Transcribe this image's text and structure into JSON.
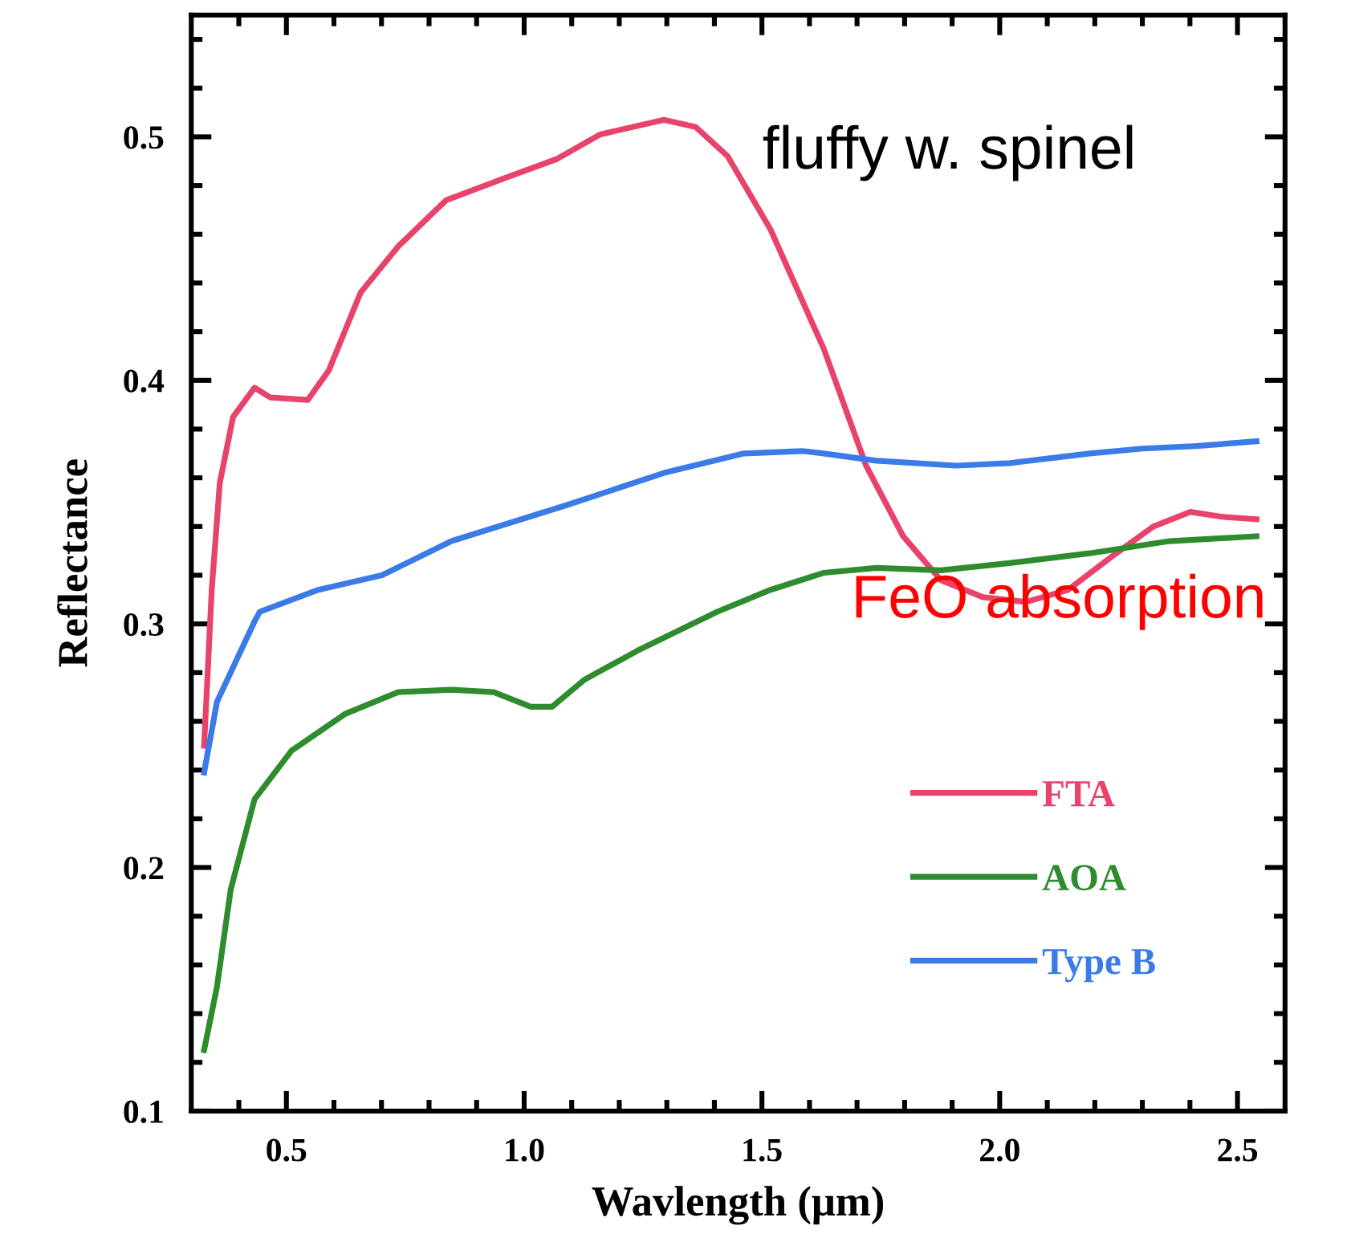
{
  "chart_data": {
    "type": "line",
    "xlabel": "Wavlength (μm)",
    "ylabel": "Reflectance",
    "annotations": [
      "fluffy w. spinel",
      "FeO absorption"
    ],
    "xlim": [
      0.3,
      2.6
    ],
    "ylim": [
      0.1,
      0.55
    ],
    "xticks": [
      {
        "value": 0.4,
        "label": null
      },
      {
        "value": 0.5,
        "label": "0.5"
      },
      {
        "value": 0.6,
        "label": null
      },
      {
        "value": 0.7,
        "label": null
      },
      {
        "value": 0.8,
        "label": null
      },
      {
        "value": 0.9,
        "label": null
      },
      {
        "value": 1.0,
        "label": "1.0"
      },
      {
        "value": 1.1,
        "label": null
      },
      {
        "value": 1.2,
        "label": null
      },
      {
        "value": 1.3,
        "label": null
      },
      {
        "value": 1.4,
        "label": null
      },
      {
        "value": 1.5,
        "label": "1.5"
      },
      {
        "value": 1.6,
        "label": null
      },
      {
        "value": 1.7,
        "label": null
      },
      {
        "value": 1.8,
        "label": null
      },
      {
        "value": 1.9,
        "label": null
      },
      {
        "value": 2.0,
        "label": "2.0"
      },
      {
        "value": 2.1,
        "label": null
      },
      {
        "value": 2.2,
        "label": null
      },
      {
        "value": 2.3,
        "label": null
      },
      {
        "value": 2.4,
        "label": null
      },
      {
        "value": 2.5,
        "label": "2.5"
      }
    ],
    "yticks": [
      {
        "value": 0.1,
        "label": "0.1"
      },
      {
        "value": 0.12,
        "label": null
      },
      {
        "value": 0.14,
        "label": null
      },
      {
        "value": 0.16,
        "label": null
      },
      {
        "value": 0.18,
        "label": null
      },
      {
        "value": 0.2,
        "label": "0.2"
      },
      {
        "value": 0.22,
        "label": null
      },
      {
        "value": 0.24,
        "label": null
      },
      {
        "value": 0.26,
        "label": null
      },
      {
        "value": 0.28,
        "label": null
      },
      {
        "value": 0.3,
        "label": "0.3"
      },
      {
        "value": 0.32,
        "label": null
      },
      {
        "value": 0.34,
        "label": null
      },
      {
        "value": 0.36,
        "label": null
      },
      {
        "value": 0.38,
        "label": null
      },
      {
        "value": 0.4,
        "label": "0.4"
      },
      {
        "value": 0.42,
        "label": null
      },
      {
        "value": 0.44,
        "label": null
      },
      {
        "value": 0.46,
        "label": null
      },
      {
        "value": 0.48,
        "label": null
      },
      {
        "value": 0.5,
        "label": "0.5"
      },
      {
        "value": 0.52,
        "label": null
      },
      {
        "value": 0.54,
        "label": null
      }
    ],
    "grid": false,
    "legend": "bottom right",
    "marker": "none",
    "line_style": "solid",
    "series": [
      {
        "name": "FTA",
        "color": "#e8436a",
        "x": [
          0.327,
          0.343,
          0.36,
          0.388,
          0.433,
          0.466,
          0.545,
          0.589,
          0.656,
          0.735,
          0.836,
          0.958,
          1.07,
          1.16,
          1.294,
          1.361,
          1.428,
          1.518,
          1.63,
          1.719,
          1.797,
          1.876,
          1.965,
          2.055,
          2.144,
          2.245,
          2.323,
          2.401,
          2.468,
          2.54
        ],
        "values": [
          0.25,
          0.314,
          0.358,
          0.385,
          0.397,
          0.393,
          0.392,
          0.404,
          0.436,
          0.455,
          0.474,
          0.483,
          0.491,
          0.501,
          0.507,
          0.504,
          0.492,
          0.462,
          0.413,
          0.365,
          0.336,
          0.318,
          0.311,
          0.309,
          0.314,
          0.329,
          0.34,
          0.346,
          0.344,
          0.343
        ]
      },
      {
        "name": "AOA",
        "color": "#2e8b2e",
        "x": [
          0.327,
          0.354,
          0.383,
          0.433,
          0.511,
          0.623,
          0.735,
          0.847,
          0.936,
          1.014,
          1.059,
          1.126,
          1.238,
          1.406,
          1.518,
          1.63,
          1.741,
          1.876,
          2.021,
          2.189,
          2.357,
          2.54
        ],
        "values": [
          0.125,
          0.151,
          0.191,
          0.228,
          0.248,
          0.263,
          0.272,
          0.273,
          0.272,
          0.266,
          0.266,
          0.277,
          0.289,
          0.305,
          0.314,
          0.321,
          0.323,
          0.322,
          0.325,
          0.329,
          0.334,
          0.336
        ]
      },
      {
        "name": "Type B",
        "color": "#3a7be8",
        "x": [
          0.327,
          0.354,
          0.433,
          0.444,
          0.567,
          0.701,
          0.847,
          1.093,
          1.294,
          1.462,
          1.585,
          1.63,
          1.741,
          1.909,
          2.021,
          2.189,
          2.301,
          2.413,
          2.54
        ],
        "values": [
          0.239,
          0.268,
          0.301,
          0.305,
          0.314,
          0.32,
          0.334,
          0.349,
          0.362,
          0.37,
          0.371,
          0.37,
          0.367,
          0.365,
          0.366,
          0.37,
          0.372,
          0.373,
          0.375
        ]
      }
    ]
  }
}
